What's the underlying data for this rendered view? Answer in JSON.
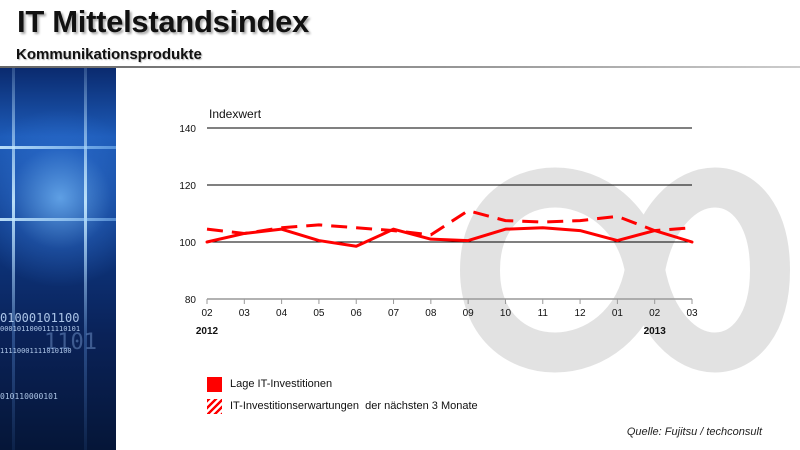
{
  "header": {
    "title": "IT Mittelstandsindex",
    "subtitle": "Kommunikationsprodukte"
  },
  "sidebar": {
    "binary_lines": [
      "01000101100",
      "0001011000111110101",
      "1101",
      "11110001111010100",
      "010110000101"
    ]
  },
  "source": "Quelle: Fujitsu / techconsult",
  "colors": {
    "series": "#ff0000",
    "sidebar": "#0e3a87",
    "watermark": "#cccccc"
  },
  "chart_data": {
    "type": "line",
    "title": "",
    "ylabel": "Indexwert",
    "xlabel": "",
    "ylim": [
      80,
      140
    ],
    "yticks": [
      80,
      100,
      120,
      140
    ],
    "gridlines": [
      100,
      120,
      140
    ],
    "categories": [
      "02",
      "03",
      "04",
      "05",
      "06",
      "07",
      "08",
      "09",
      "10",
      "11",
      "12",
      "01",
      "02",
      "03"
    ],
    "year_labels": [
      {
        "label": "2012",
        "at_category_index": 0
      },
      {
        "label": "2013",
        "at_category_index": 12
      }
    ],
    "series": [
      {
        "name": "Lage IT-Investitionen",
        "style": "solid",
        "values": [
          100,
          103,
          104.5,
          100.5,
          98.5,
          104.5,
          101,
          100.5,
          104.5,
          105,
          104,
          100.5,
          104,
          100
        ]
      },
      {
        "name": "IT-Investitionserwartungen  der nächsten 3 Monate",
        "style": "dashed",
        "values": [
          104.5,
          103,
          105,
          106,
          105,
          104,
          102.5,
          111,
          107.5,
          107,
          107.5,
          109,
          104,
          105
        ]
      }
    ]
  }
}
